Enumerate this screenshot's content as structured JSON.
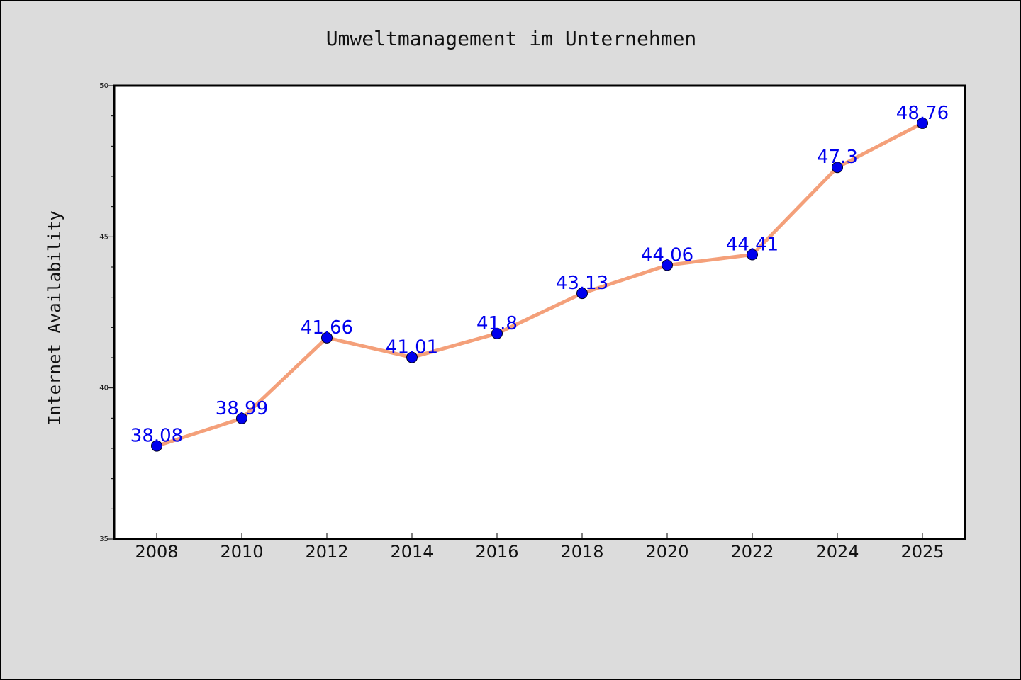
{
  "chart_data": {
    "type": "line",
    "title": "Umweltmanagement im Unternehmen",
    "xlabel": "",
    "ylabel": "Internet Availability",
    "categories": [
      "2008",
      "2010",
      "2012",
      "2014",
      "2016",
      "2018",
      "2020",
      "2022",
      "2024",
      "2025"
    ],
    "series": [
      {
        "values": [
          38.08,
          38.99,
          41.66,
          41.01,
          41.8,
          43.13,
          44.06,
          44.41,
          47.3,
          48.76
        ],
        "labels": [
          "38.08",
          "38.99",
          "41.66",
          "41.01",
          "41.8",
          "43.13",
          "44.06",
          "44.41",
          "47.3",
          "48.76"
        ],
        "line_color": "#f4a07a",
        "marker_color": "#0000ee",
        "label_color": "#0000ee"
      }
    ],
    "ylim": [
      35,
      50
    ],
    "yticks": [
      "35",
      "40",
      "45",
      "50"
    ],
    "grid": false,
    "legend": "none",
    "colors": {
      "background": "#dcdcdc",
      "plot_background": "#ffffff"
    }
  }
}
